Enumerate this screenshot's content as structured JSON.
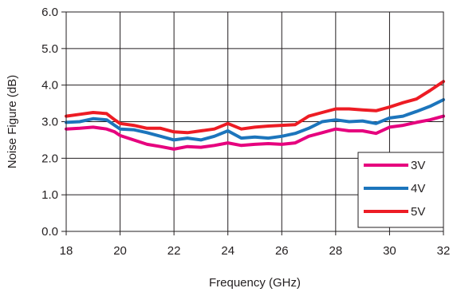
{
  "chart_data": {
    "type": "line",
    "title": "",
    "xlabel": "Frequency (GHz)",
    "ylabel": "Noise Figure (dB)",
    "xlim": [
      18,
      32
    ],
    "ylim": [
      0,
      6
    ],
    "x_ticks": [
      "18",
      "20",
      "22",
      "24",
      "26",
      "28",
      "30",
      "32"
    ],
    "x_tick_values": [
      18,
      20,
      22,
      24,
      26,
      28,
      30,
      32
    ],
    "y_ticks": [
      "0.0",
      "1.0",
      "2.0",
      "3.0",
      "4.0",
      "5.0",
      "6.0"
    ],
    "y_tick_values": [
      0,
      1,
      2,
      3,
      4,
      5,
      6
    ],
    "grid": true,
    "legend_position": "bottom-right",
    "series": [
      {
        "name": "3V",
        "color": "#e6007e",
        "x": [
          18,
          18.5,
          19,
          19.5,
          19.8,
          20,
          20.5,
          21,
          21.5,
          22,
          22.5,
          23,
          23.5,
          24,
          24.5,
          25,
          25.5,
          26,
          26.5,
          27,
          27.5,
          28,
          28.5,
          29,
          29.5,
          30,
          30.5,
          31,
          31.5,
          32
        ],
        "y": [
          2.8,
          2.82,
          2.85,
          2.8,
          2.72,
          2.62,
          2.5,
          2.38,
          2.32,
          2.25,
          2.32,
          2.3,
          2.35,
          2.42,
          2.35,
          2.38,
          2.4,
          2.38,
          2.42,
          2.6,
          2.7,
          2.8,
          2.75,
          2.75,
          2.68,
          2.85,
          2.9,
          2.98,
          3.05,
          3.15
        ]
      },
      {
        "name": "4V",
        "color": "#1c75bc",
        "x": [
          18,
          18.5,
          19,
          19.5,
          19.8,
          20,
          20.5,
          21,
          21.5,
          22,
          22.5,
          23,
          23.5,
          24,
          24.5,
          25,
          25.5,
          26,
          26.5,
          27,
          27.5,
          28,
          28.5,
          29,
          29.5,
          30,
          30.5,
          31,
          31.5,
          32
        ],
        "y": [
          2.98,
          3.0,
          3.08,
          3.05,
          2.9,
          2.8,
          2.78,
          2.7,
          2.6,
          2.5,
          2.55,
          2.5,
          2.6,
          2.75,
          2.55,
          2.58,
          2.55,
          2.6,
          2.68,
          2.82,
          3.0,
          3.05,
          3.0,
          3.02,
          2.95,
          3.1,
          3.15,
          3.28,
          3.42,
          3.6
        ]
      },
      {
        "name": "5V",
        "color": "#ed1c24",
        "x": [
          18,
          18.5,
          19,
          19.5,
          19.8,
          20,
          20.5,
          21,
          21.5,
          22,
          22.5,
          23,
          23.5,
          24,
          24.5,
          25,
          25.5,
          26,
          26.5,
          27,
          27.5,
          28,
          28.5,
          29,
          29.5,
          30,
          30.5,
          31,
          31.5,
          32
        ],
        "y": [
          3.15,
          3.2,
          3.25,
          3.22,
          3.05,
          2.95,
          2.9,
          2.82,
          2.82,
          2.72,
          2.7,
          2.75,
          2.8,
          2.95,
          2.8,
          2.85,
          2.88,
          2.9,
          2.92,
          3.15,
          3.25,
          3.35,
          3.35,
          3.32,
          3.3,
          3.4,
          3.52,
          3.62,
          3.85,
          4.1
        ]
      }
    ]
  }
}
